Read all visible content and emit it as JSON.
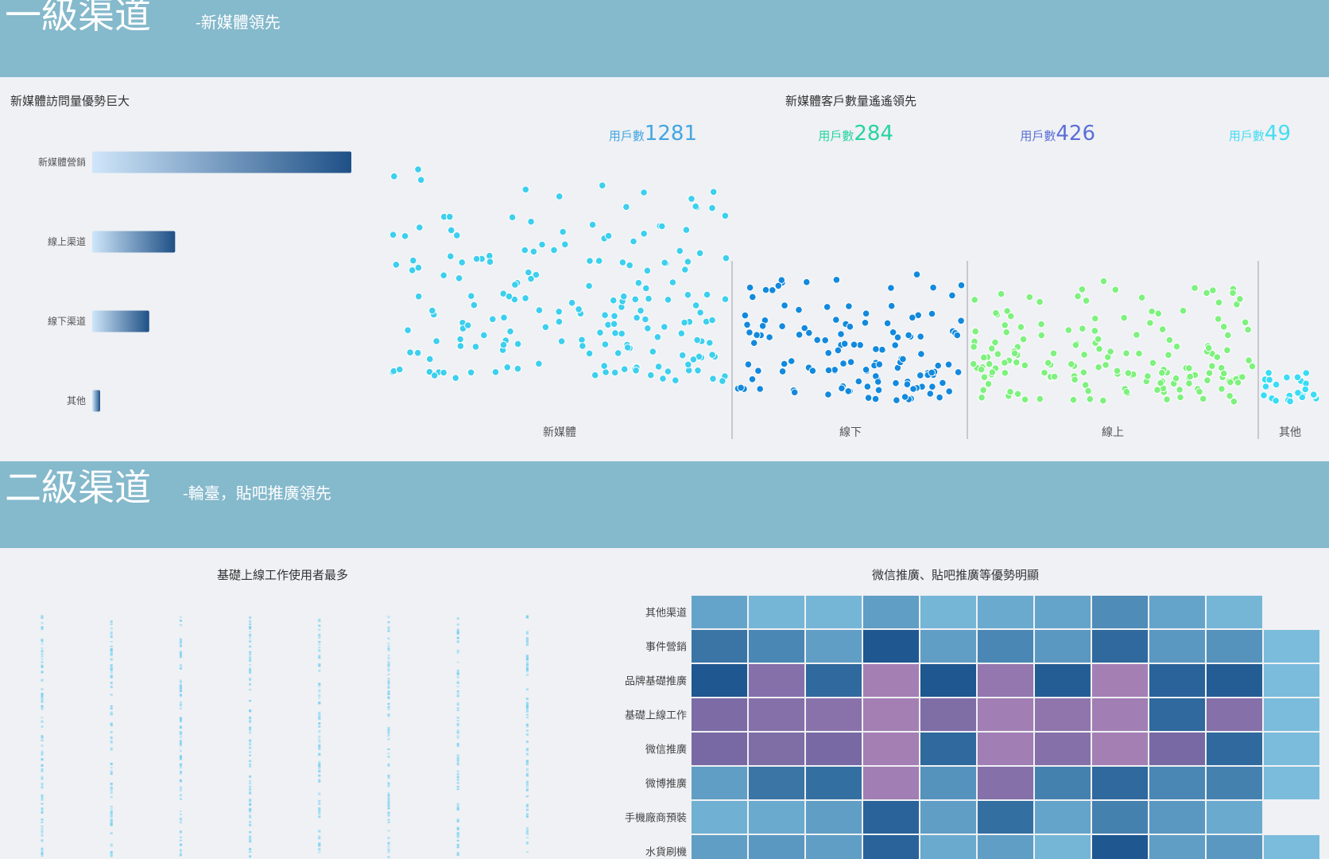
{
  "section1": {
    "title": "一級渠道",
    "subtitle": "-新媒體領先"
  },
  "section2": {
    "title": "二級渠道",
    "subtitle": "-輪臺，貼吧推廣領先"
  },
  "colors": {
    "band": "#85b9cc",
    "bar_gradient": [
      "#cfe6fa",
      "#1e5086"
    ],
    "scatter": [
      "#3dcfee",
      "#1289dd",
      "#7ef17e",
      "#39dcf4"
    ],
    "caption_colors": [
      "#43a6e1",
      "#27d3a3",
      "#5b6fd6",
      "#45dcf2"
    ]
  },
  "chart_data": [
    {
      "type": "bar",
      "orientation": "horizontal",
      "title": "新媒體訪問量優勢巨大",
      "categories": [
        "新媒體營銷",
        "線上渠道",
        "線下渠道",
        "其他"
      ],
      "values": [
        100,
        32,
        22,
        3
      ],
      "xlim": [
        0,
        100
      ],
      "grid": false
    },
    {
      "type": "scatter",
      "title": "新媒體客戶數量遙遙領先",
      "categories": [
        "新媒體",
        "線下",
        "線上",
        "其他"
      ],
      "series": [
        {
          "name": "新媒體",
          "count_label": "用戶數",
          "count": "1281"
        },
        {
          "name": "線下",
          "count_label": "用戶數",
          "count": "284"
        },
        {
          "name": "線上",
          "count_label": "用戶數",
          "count": "426"
        },
        {
          "name": "其他",
          "count_label": "用戶數",
          "count": "49"
        }
      ]
    },
    {
      "type": "scatter",
      "title": "基礎上線工作使用者最多",
      "strips": 8
    },
    {
      "type": "heatmap",
      "title": "微信推廣、貼吧推廣等優勢明顯",
      "rows": [
        "其他渠道",
        "事件營銷",
        "品牌基礎推廣",
        "基礎上線工作",
        "微信推廣",
        "微博推廣",
        "手機廠商預裝",
        "水貨刷機"
      ],
      "values": [
        [
          0.25,
          0.1,
          0.1,
          0.3,
          0.1,
          0.2,
          0.25,
          0.45,
          0.25,
          0.1,
          null
        ],
        [
          0.65,
          0.5,
          0.3,
          0.9,
          0.3,
          0.5,
          0.35,
          0.75,
          0.35,
          0.4,
          0.05
        ],
        [
          0.9,
          "P0.65",
          0.75,
          "P0.2",
          0.9,
          "P0.45",
          0.85,
          "P0.2",
          0.8,
          0.85,
          0.05
        ],
        [
          "P0.8",
          "P0.65",
          "P0.6",
          "P0.2",
          "P0.75",
          "P0.25",
          "P0.5",
          "P0.25",
          0.75,
          "P0.65",
          0.05
        ],
        [
          "P0.85",
          "P0.75",
          "P0.85",
          "P0.2",
          0.75,
          "P0.25",
          "P0.65",
          "P0.2",
          "P0.85",
          0.75,
          0.05
        ],
        [
          0.3,
          0.65,
          0.7,
          "P0.25",
          0.4,
          "P0.65",
          0.55,
          0.75,
          0.5,
          0.55,
          0.05
        ],
        [
          0.15,
          0.2,
          0.3,
          0.8,
          0.3,
          0.7,
          0.25,
          0.55,
          0.35,
          0.2,
          null
        ],
        [
          0.3,
          0.35,
          0.3,
          0.8,
          0.2,
          0.3,
          0.1,
          0.9,
          0.3,
          0.35,
          0.05
        ]
      ]
    }
  ]
}
